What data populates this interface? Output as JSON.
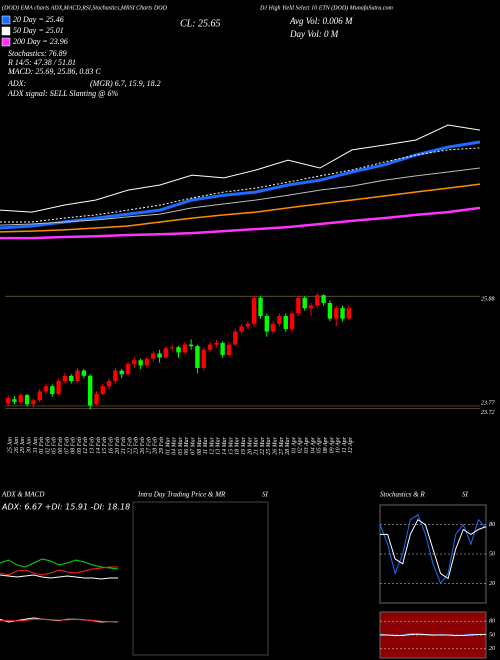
{
  "header": {
    "left": "(DOD) EMA charts ADX,MACD,RSI,Stochastics,MRSI Charts DOD",
    "right": "DJ High Yield Select 10 ETN (DOD) MunafaSutra.com",
    "close": "CL: 25.65",
    "avg_vol": "Avg Vol: 0.006  M",
    "day_vol": "Day Vol: 0  M"
  },
  "stats": {
    "stochastics": "Stochastics: 76.89",
    "rsi": "R 14/5: 47.38 / 51.81",
    "macd": "MACD: 25.69, 25.86, 0.83 C",
    "adx_label": "ADX:",
    "adx_values": "(MGR) 6.7, 15.9, 18.2",
    "adx_signal": "ADX  signal: SELL Slanting @ 6%"
  },
  "intraday_panel": {
    "title": "Intra Day Trading Price & MR",
    "title_suffix": "SI"
  },
  "chart_data": [
    {
      "type": "line",
      "ylim": [
        20.5,
        30.4
      ],
      "series": [
        {
          "color": "#ffffff",
          "values": [
            22.97,
            22.9,
            23.15,
            23.33,
            23.68,
            23.86,
            24.21,
            24.11,
            24.39,
            24.74,
            24.46,
            25.1,
            25.27,
            25.45,
            25.98,
            25.8
          ]
        },
        {
          "name": "20 Day = 25.46",
          "color": "#1e6bff",
          "values": [
            22.34,
            22.41,
            22.55,
            22.69,
            22.83,
            22.97,
            23.33,
            23.5,
            23.61,
            23.86,
            24.03,
            24.32,
            24.57,
            24.92,
            25.2,
            25.38
          ]
        },
        {
          "name": "50 Day = 25.01",
          "color": "#ffffff",
          "values": [
            22.55,
            22.55,
            22.69,
            22.8,
            22.97,
            23.15,
            23.4,
            23.61,
            23.75,
            23.96,
            24.18,
            24.39,
            24.67,
            24.92,
            25.1,
            25.17
          ]
        },
        {
          "color": "#bbbbbb",
          "values": [
            22.44,
            22.48,
            22.55,
            22.62,
            22.73,
            22.83,
            23.05,
            23.19,
            23.33,
            23.5,
            23.68,
            23.82,
            24.03,
            24.18,
            24.32,
            24.46
          ]
        },
        {
          "color": "#ff8c00",
          "values": [
            22.2,
            22.23,
            22.27,
            22.34,
            22.41,
            22.55,
            22.69,
            22.8,
            22.9,
            23.05,
            23.19,
            23.33,
            23.47,
            23.61,
            23.75,
            23.89
          ]
        },
        {
          "name": "200 Day = 23.96",
          "color": "#ff33ff",
          "values": [
            21.98,
            21.98,
            22.02,
            22.05,
            22.09,
            22.12,
            22.16,
            22.23,
            22.3,
            22.37,
            22.48,
            22.59,
            22.69,
            22.8,
            22.9,
            23.05
          ]
        }
      ]
    },
    {
      "type": "candlestick",
      "ylim": [
        23.5,
        26.0
      ],
      "yticks": [
        23.72,
        23.77,
        25.88
      ],
      "up_color": "#ff0000",
      "down_color": "#00ff00",
      "categories": [
        "25 Jan",
        "26 Jan",
        "29 Jan",
        "30 Jan",
        "31 Jan",
        "01 Feb",
        "02 Feb",
        "05 Feb",
        "06 Feb",
        "07 Feb",
        "08 Feb",
        "09 Feb",
        "12 Feb",
        "13 Feb",
        "14 Feb",
        "15 Feb",
        "16 Feb",
        "20 Feb",
        "21 Feb",
        "22 Feb",
        "23 Feb",
        "26 Feb",
        "27 Feb",
        "28 Feb",
        "29 Feb",
        "01 Mar",
        "04 Mar",
        "05 Mar",
        "06 Mar",
        "07 Mar",
        "08 Mar",
        "11 Mar",
        "12 Mar",
        "13 Mar",
        "14 Mar",
        "15 Mar",
        "18 Mar",
        "19 Mar",
        "20 Mar",
        "21 Mar",
        "22 Mar",
        "25 Mar",
        "26 Mar",
        "27 Mar",
        "28 Mar",
        "01 Apr",
        "02 Apr",
        "03 Apr",
        "04 Apr",
        "05 Apr",
        "08 Apr",
        "09 Apr",
        "10 Apr",
        "11 Apr",
        "12 Apr"
      ],
      "ohlc": [
        [
          23.82,
          23.98,
          23.76,
          23.92
        ],
        [
          23.9,
          23.96,
          23.8,
          23.85
        ],
        [
          23.84,
          24.02,
          23.8,
          23.98
        ],
        [
          23.98,
          24.0,
          23.76,
          23.8
        ],
        [
          23.8,
          23.92,
          23.74,
          23.88
        ],
        [
          23.88,
          24.1,
          23.85,
          24.05
        ],
        [
          24.05,
          24.2,
          24.0,
          24.15
        ],
        [
          24.15,
          24.18,
          23.95,
          24.0
        ],
        [
          24.0,
          24.3,
          23.98,
          24.25
        ],
        [
          24.25,
          24.4,
          24.2,
          24.35
        ],
        [
          24.35,
          24.38,
          24.2,
          24.25
        ],
        [
          24.25,
          24.5,
          24.22,
          24.45
        ],
        [
          24.45,
          24.48,
          24.3,
          24.35
        ],
        [
          24.35,
          24.38,
          23.7,
          23.78
        ],
        [
          23.8,
          24.05,
          23.77,
          24.0
        ],
        [
          24.0,
          24.2,
          23.98,
          24.15
        ],
        [
          24.15,
          24.3,
          24.1,
          24.25
        ],
        [
          24.25,
          24.5,
          24.2,
          24.45
        ],
        [
          24.45,
          24.48,
          24.3,
          24.38
        ],
        [
          24.38,
          24.62,
          24.35,
          24.58
        ],
        [
          24.58,
          24.7,
          24.5,
          24.65
        ],
        [
          24.65,
          24.68,
          24.48,
          24.55
        ],
        [
          24.55,
          24.72,
          24.5,
          24.68
        ],
        [
          24.68,
          24.82,
          24.62,
          24.78
        ],
        [
          24.78,
          24.85,
          24.6,
          24.7
        ],
        [
          24.7,
          24.92,
          24.68,
          24.88
        ],
        [
          24.88,
          24.95,
          24.82,
          24.9
        ],
        [
          24.9,
          24.92,
          24.7,
          24.8
        ],
        [
          24.8,
          25.0,
          24.78,
          24.95
        ],
        [
          24.95,
          25.05,
          24.85,
          24.92
        ],
        [
          24.92,
          24.95,
          24.4,
          24.5
        ],
        [
          24.5,
          24.9,
          24.45,
          24.85
        ],
        [
          24.85,
          25.0,
          24.8,
          24.95
        ],
        [
          24.95,
          25.05,
          24.88,
          24.98
        ],
        [
          24.98,
          25.02,
          24.7,
          24.75
        ],
        [
          24.75,
          25.0,
          24.72,
          24.95
        ],
        [
          24.95,
          25.25,
          24.92,
          25.2
        ],
        [
          25.2,
          25.35,
          25.15,
          25.3
        ],
        [
          25.3,
          25.4,
          25.25,
          25.35
        ],
        [
          25.35,
          25.88,
          25.3,
          25.85
        ],
        [
          25.85,
          25.88,
          25.45,
          25.5
        ],
        [
          25.5,
          25.55,
          25.1,
          25.2
        ],
        [
          25.2,
          25.4,
          25.15,
          25.35
        ],
        [
          25.35,
          25.55,
          25.3,
          25.5
        ],
        [
          25.5,
          25.55,
          25.2,
          25.25
        ],
        [
          25.25,
          25.6,
          25.2,
          25.55
        ],
        [
          25.55,
          25.88,
          25.5,
          25.85
        ],
        [
          25.85,
          25.88,
          25.6,
          25.65
        ],
        [
          25.65,
          25.75,
          25.5,
          25.7
        ],
        [
          25.7,
          25.95,
          25.65,
          25.9
        ],
        [
          25.9,
          25.92,
          25.7,
          25.75
        ],
        [
          25.75,
          25.8,
          25.4,
          25.45
        ],
        [
          25.45,
          25.7,
          25.3,
          25.65
        ],
        [
          25.65,
          25.7,
          25.4,
          25.45
        ],
        [
          25.45,
          25.7,
          25.42,
          25.65
        ]
      ]
    },
    {
      "type": "line",
      "title": "ADX & MACD",
      "subtitle": "ADX: 6.67 +DI: 15.91 -DI: 18.18",
      "ylim": [
        0,
        40
      ],
      "series": [
        {
          "color": "#00dd00",
          "values": [
            22,
            25,
            20,
            18,
            22,
            26,
            24,
            20,
            22,
            25,
            23,
            20,
            18,
            17,
            16
          ]
        },
        {
          "color": "#ff2222",
          "values": [
            12,
            10,
            14,
            15,
            12,
            10,
            12,
            15,
            13,
            12,
            14,
            16,
            17,
            18,
            18
          ]
        },
        {
          "color": "#ffffff",
          "values": [
            10,
            9,
            8,
            9,
            10,
            8,
            7,
            8,
            9,
            8,
            7,
            7,
            6,
            7,
            7
          ]
        }
      ]
    },
    {
      "type": "line",
      "ylim": [
        -1,
        1
      ],
      "series": [
        {
          "color": "#ffffff",
          "values": [
            0.3,
            0.2,
            0.25,
            0.3,
            0.35,
            0.3,
            0.28,
            0.25,
            0.3,
            0.3,
            0.28,
            0.25,
            0.2,
            0.22,
            0.2
          ]
        },
        {
          "color": "#ff2222",
          "values": [
            0.25,
            0.25,
            0.24,
            0.26,
            0.3,
            0.3,
            0.29,
            0.27,
            0.28,
            0.29,
            0.28,
            0.26,
            0.23,
            0.22,
            0.21
          ]
        }
      ]
    },
    {
      "type": "line",
      "title": "Stochastics & R",
      "title_suffix": "SI",
      "ylim": [
        0,
        100
      ],
      "yticks": [
        20,
        50,
        80
      ],
      "background": "#000000",
      "series": [
        {
          "color": "#1e6bff",
          "values": [
            80,
            60,
            30,
            50,
            85,
            90,
            70,
            40,
            20,
            30,
            70,
            80,
            60,
            85,
            76
          ]
        },
        {
          "color": "#ffffff",
          "values": [
            70,
            70,
            45,
            40,
            70,
            85,
            80,
            55,
            30,
            25,
            55,
            75,
            70,
            75,
            78
          ]
        }
      ]
    },
    {
      "type": "line",
      "ylim": [
        0,
        100
      ],
      "yticks": [
        20,
        50,
        80
      ],
      "background": "#8b0000",
      "series": [
        {
          "color": "#1e6bff",
          "values": [
            52,
            50,
            48,
            50,
            53,
            52,
            50,
            49,
            51,
            50,
            48,
            50,
            52,
            51,
            52
          ]
        },
        {
          "color": "#ffffff",
          "values": [
            50,
            50,
            49,
            49,
            51,
            52,
            51,
            50,
            50,
            50,
            49,
            49,
            50,
            51,
            51
          ]
        }
      ]
    }
  ]
}
